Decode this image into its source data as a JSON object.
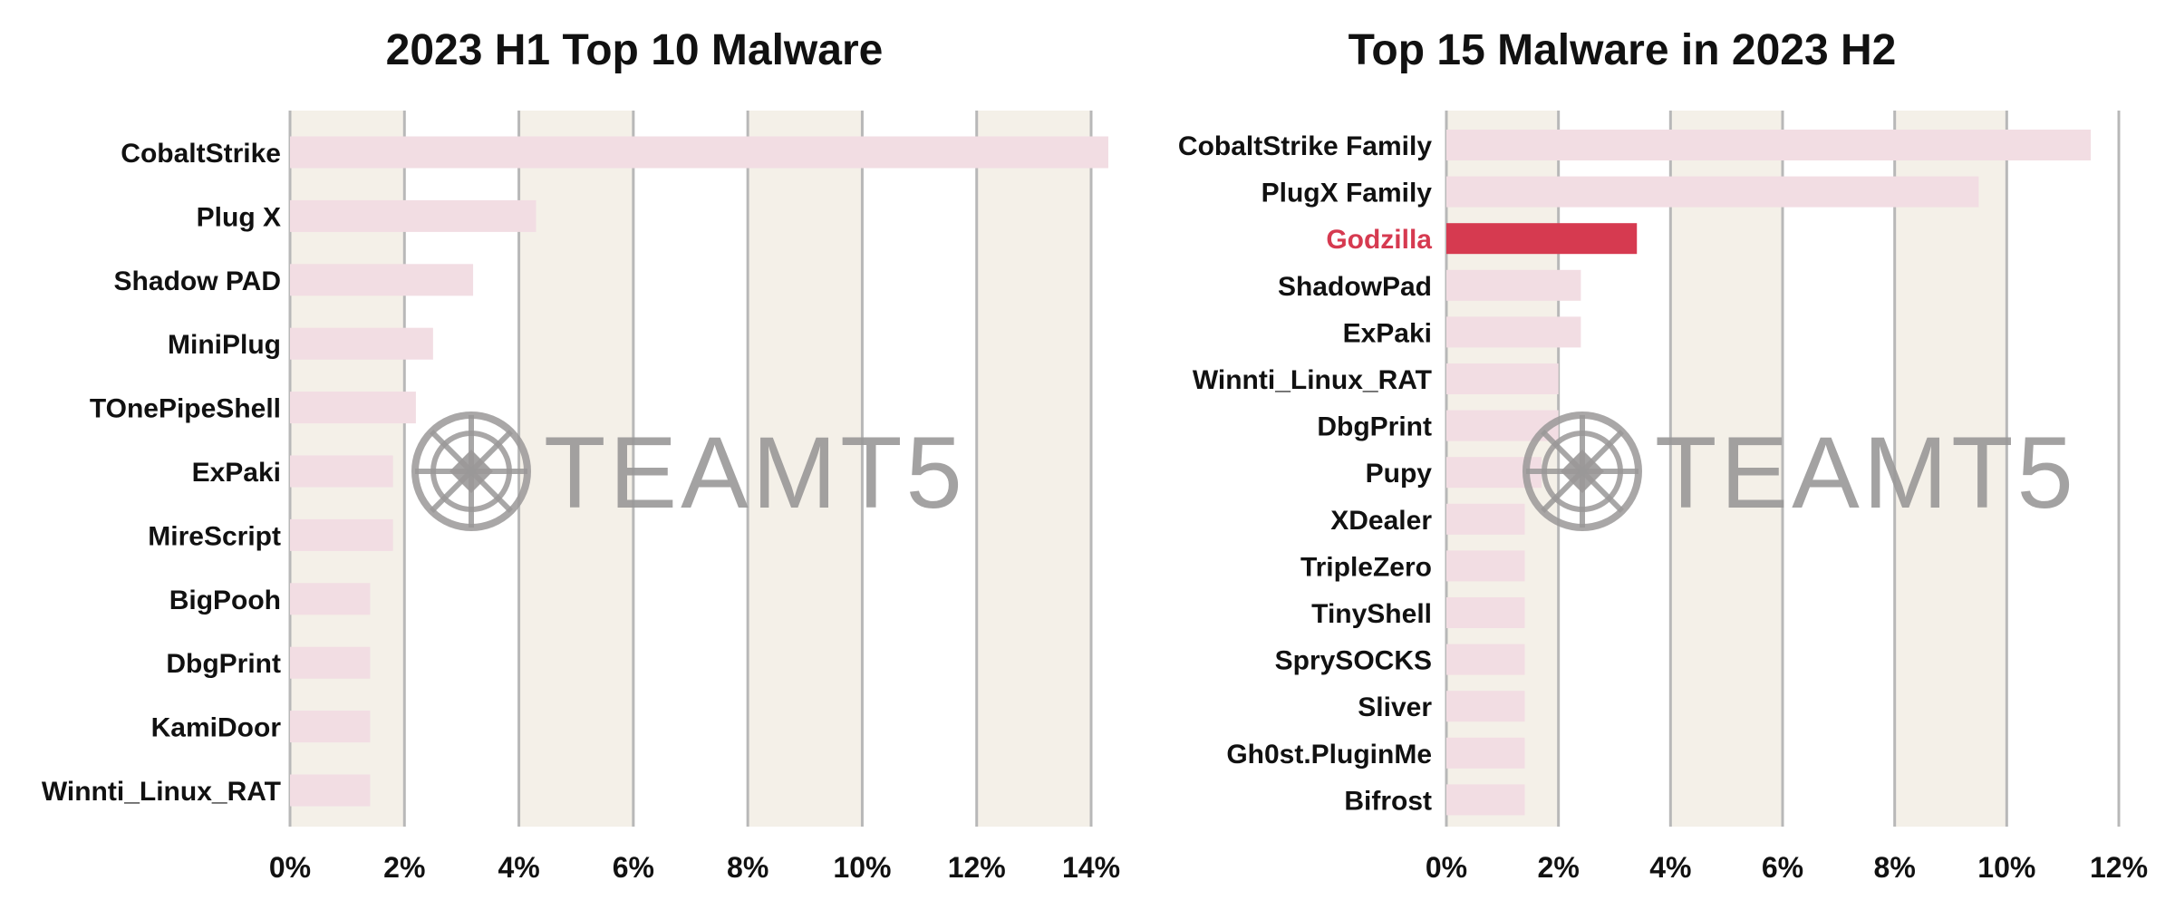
{
  "watermark": "TEAMT5",
  "chart_data": [
    {
      "type": "bar",
      "orientation": "horizontal",
      "title": "2023 H1 Top 10 Malware",
      "categories": [
        "CobaltStrike",
        "Plug X",
        "Shadow PAD",
        "MiniPlug",
        "TOnePipeShell",
        "ExPaki",
        "MireScript",
        "BigPooh",
        "DbgPrint",
        "KamiDoor",
        "Winnti_Linux_RAT"
      ],
      "values": [
        14.3,
        4.3,
        3.2,
        2.5,
        2.2,
        1.8,
        1.8,
        1.4,
        1.4,
        1.4,
        1.4
      ],
      "xlim": [
        0,
        14
      ],
      "xticks": [
        "0%",
        "2%",
        "4%",
        "6%",
        "8%",
        "10%",
        "12%",
        "14%"
      ],
      "grid": true,
      "bar_color": "#f2dde3",
      "band_color": "#f4f0e8"
    },
    {
      "type": "bar",
      "orientation": "horizontal",
      "title": "Top 15 Malware in 2023 H2",
      "categories": [
        "CobaltStrike Family",
        "PlugX Family",
        "Godzilla",
        "ShadowPad",
        "ExPaki",
        "Winnti_Linux_RAT",
        "DbgPrint",
        "Pupy",
        "XDealer",
        "TripleZero",
        "TinyShell",
        "SprySOCKS",
        "Sliver",
        "Gh0st.PluginMe",
        "Bifrost"
      ],
      "values": [
        11.5,
        9.5,
        3.4,
        2.4,
        2.4,
        2.0,
        2.0,
        1.7,
        1.4,
        1.4,
        1.4,
        1.4,
        1.4,
        1.4,
        1.4
      ],
      "highlight": "Godzilla",
      "highlight_color": "#d63a50",
      "xlim": [
        0,
        12
      ],
      "xticks": [
        "0%",
        "2%",
        "4%",
        "6%",
        "8%",
        "10%",
        "12%"
      ],
      "grid": true,
      "bar_color": "#f2dde3",
      "band_color": "#f4f0e8"
    }
  ]
}
